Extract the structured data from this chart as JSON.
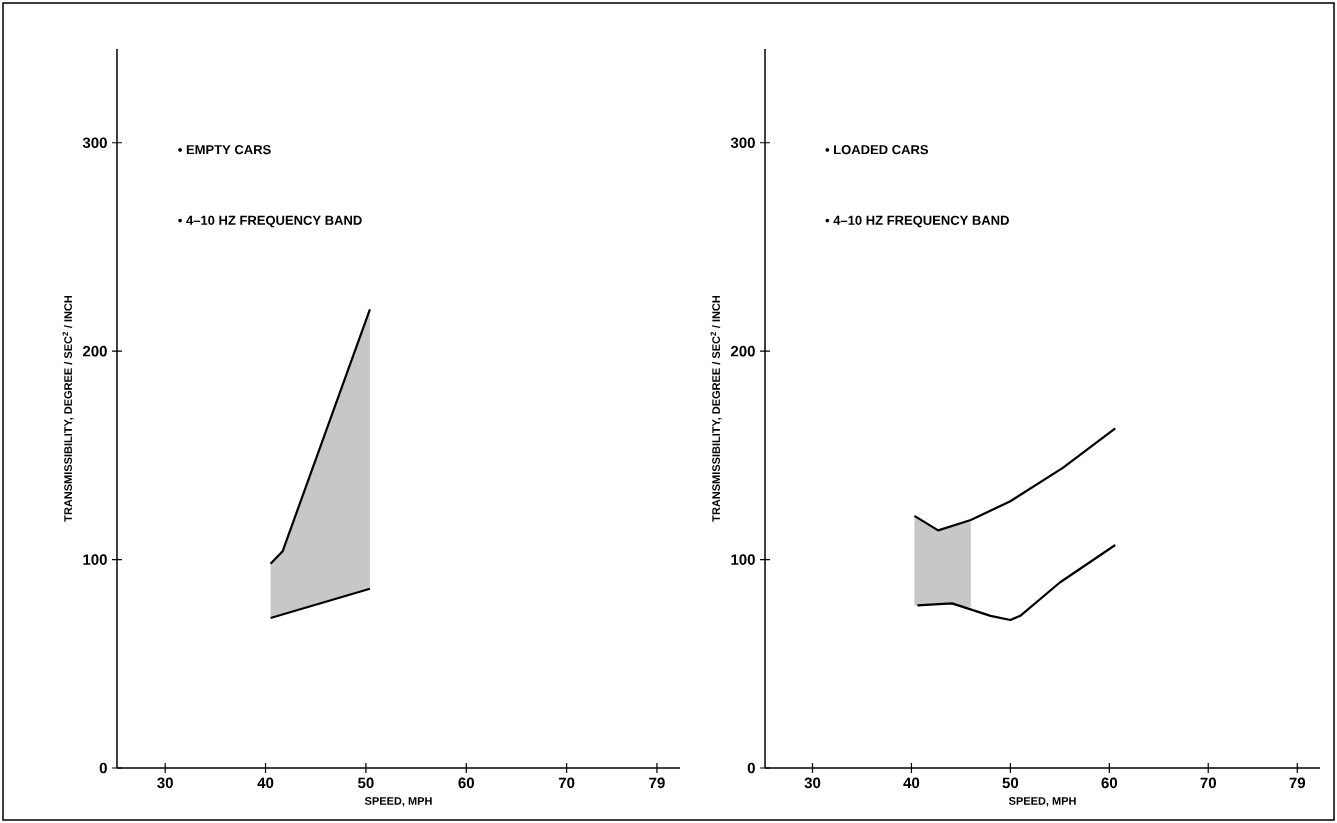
{
  "chart_data": [
    {
      "type": "line",
      "xlabel": "SPEED, MPH",
      "ylabel": "TRANSMISSIBILITY, DEGREE / SEC$^{2}$ / INCH",
      "xlim": [
        25.2,
        81.3
      ],
      "ylim": [
        0,
        345
      ],
      "xticks": [
        30,
        40,
        50,
        60,
        70,
        79
      ],
      "yticks": [
        0,
        100,
        200,
        300
      ],
      "annotations": [
        "• EMPTY CARS",
        "• 4–10 HZ FREQUENCY BAND"
      ],
      "series": [
        {
          "color": "#000000",
          "x": [
            40.5,
            41.7,
            50.4
          ],
          "values": [
            98,
            104,
            220
          ],
          "lower": [
            72,
            73.6,
            86
          ],
          "upper": [
            98,
            104,
            220
          ]
        },
        {
          "color": "#000000",
          "x": [
            40.5,
            50.4
          ],
          "values": [
            72,
            86
          ]
        }
      ]
    },
    {
      "type": "line",
      "xlabel": "SPEED, MPH",
      "ylabel": "TRANSMISSIBILITY, DEGREE / SEC$^{2}$ / INCH",
      "xlim": [
        25.2,
        81.3
      ],
      "ylim": [
        0,
        345
      ],
      "xticks": [
        30,
        40,
        50,
        60,
        70,
        79
      ],
      "yticks": [
        0,
        100,
        200,
        300
      ],
      "annotations": [
        "• LOADED CARS",
        "• 4–10 HZ FREQUENCY BAND"
      ],
      "series": [
        {
          "color": "#000000",
          "x": [
            40.3,
            42.7,
            46,
            50,
            55.3,
            60.6
          ],
          "values": [
            121,
            114,
            119,
            128,
            144,
            163
          ],
          "lower": [
            78,
            79,
            77,
            null,
            null,
            null
          ],
          "upper": [
            121,
            114,
            119,
            null,
            null,
            null
          ]
        },
        {
          "color": "#000000",
          "x": [
            40.6,
            44.1,
            48,
            50,
            51,
            55,
            60.6
          ],
          "values": [
            78,
            79,
            73,
            71,
            73,
            89,
            107
          ]
        }
      ]
    }
  ]
}
